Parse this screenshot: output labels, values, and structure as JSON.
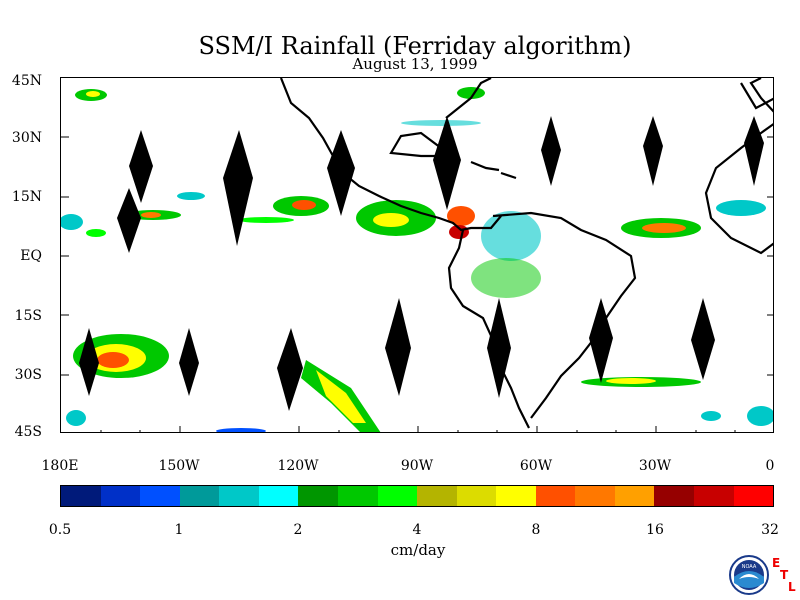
{
  "title": "SSM/I Rainfall (Ferriday algorithm)",
  "subtitle": "August 13, 1999",
  "map": {
    "lat_labels": [
      "45N",
      "30N",
      "15N",
      "EQ",
      "15S",
      "30S",
      "45S"
    ],
    "lon_labels": [
      "180E",
      "150W",
      "120W",
      "90W",
      "60W",
      "30W",
      "0"
    ],
    "lat_range": [
      -45,
      45
    ],
    "lon_range": [
      -180,
      0
    ]
  },
  "colorbar": {
    "unit": "cm/day",
    "tick_labels": [
      "0.5",
      "1",
      "2",
      "4",
      "8",
      "16",
      "32"
    ],
    "colors": [
      "#001a7a",
      "#0030c8",
      "#0050ff",
      "#009a9a",
      "#00c8c8",
      "#00ffff",
      "#009600",
      "#00c800",
      "#00ff00",
      "#b4b400",
      "#dcdc00",
      "#ffff00",
      "#ff5000",
      "#ff7800",
      "#ffa000",
      "#960000",
      "#c80000",
      "#ff0000"
    ]
  },
  "logo": {
    "name": "NOAA",
    "text": "NOAA",
    "lab_letters": [
      "E",
      "T",
      "L"
    ]
  }
}
